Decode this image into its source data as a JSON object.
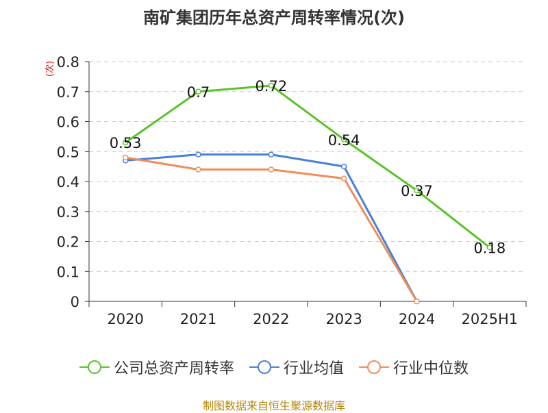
{
  "header": {
    "title": "南矿集团历年总资产周转率情况(次)"
  },
  "y_unit": "(次)",
  "source": "制图数据来自恒生聚源数据库",
  "chart_data": {
    "type": "line",
    "title": "南矿集团历年总资产周转率情况(次)",
    "categories": [
      "2020",
      "2021",
      "2022",
      "2023",
      "2024",
      "2025H1"
    ],
    "yticks": [
      "0",
      "0.1",
      "0.2",
      "0.3",
      "0.4",
      "0.5",
      "0.6",
      "0.7",
      "0.8"
    ],
    "ylim": [
      0,
      0.8
    ],
    "grid": true,
    "legend_position": "bottom",
    "series": [
      {
        "name": "公司总资产周转率",
        "color": "#5bc22a",
        "values": [
          0.53,
          0.7,
          0.72,
          0.54,
          0.37,
          0.18
        ],
        "labels": [
          "0.53",
          "0.7",
          "0.72",
          "0.54",
          "0.37",
          "0.18"
        ]
      },
      {
        "name": "行业均值",
        "color": "#4a7fd8",
        "values": [
          0.47,
          0.49,
          0.49,
          0.45,
          0.0,
          null
        ]
      },
      {
        "name": "行业中位数",
        "color": "#f08c5a",
        "values": [
          0.48,
          0.44,
          0.44,
          0.41,
          0.0,
          null
        ]
      }
    ]
  }
}
